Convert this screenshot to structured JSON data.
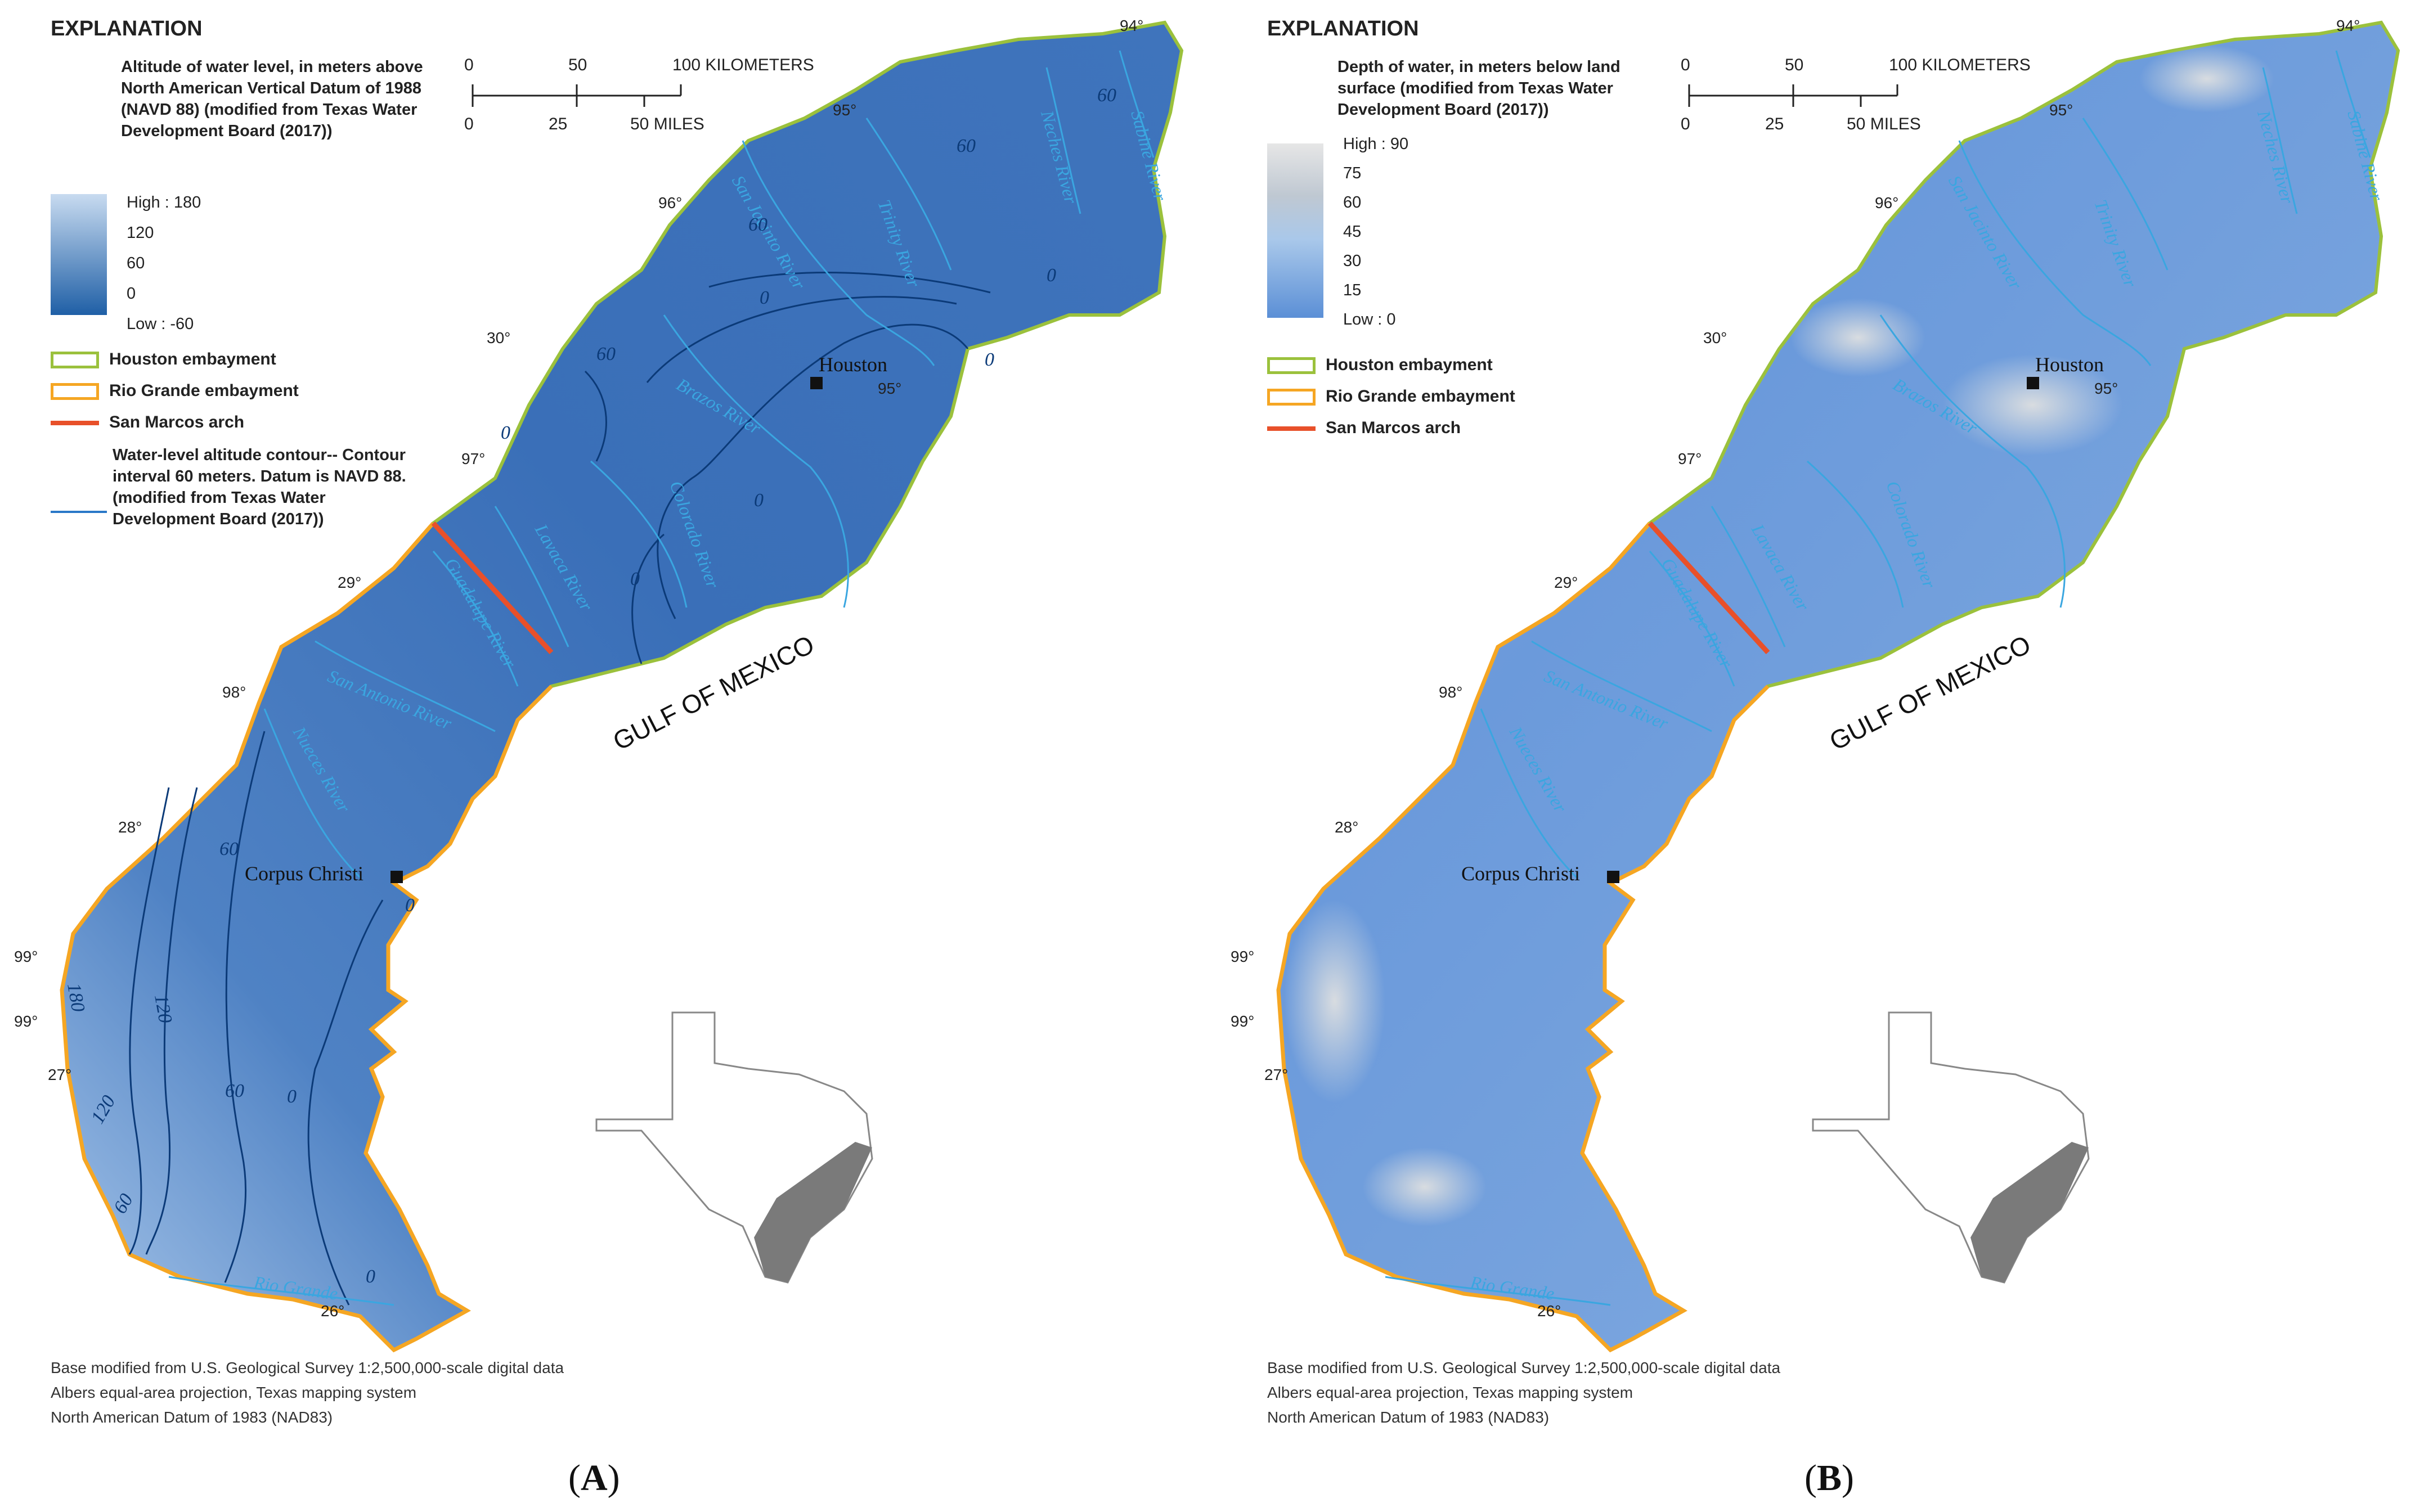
{
  "panels": [
    {
      "id": "A",
      "label": "A",
      "explanation_title": "EXPLANATION",
      "legend_title": "Altitude of water level, in meters above North American Vertical Datum of 1988 (NAVD 88) (modified from Texas Water Development Board (2017))",
      "legend_ticks": [
        "High : 180",
        "120",
        "60",
        "0",
        "Low : -60"
      ],
      "legend_colors": {
        "high": "#c8dbf0",
        "low": "#1f5fa6"
      },
      "boundaries": [
        "Houston embayment",
        "Rio Grande embayment",
        "San Marcos arch"
      ],
      "contour_legend": "Water-level altitude contour-- Contour interval 60 meters. Datum is NAVD 88. (modified from Texas Water Development Board (2017))",
      "contour_labels": [
        "60",
        "60",
        "60",
        "60",
        "0",
        "0",
        "0",
        "0",
        "0",
        "0",
        "0",
        "60",
        "60",
        "120",
        "180",
        "120",
        "60",
        "0",
        "0"
      ],
      "source": [
        "Base modified from U.S. Geological Survey 1:2,500,000-scale digital data",
        "Albers equal-area projection, Texas mapping system",
        "North American Datum of 1983 (NAD83)"
      ]
    },
    {
      "id": "B",
      "label": "B",
      "explanation_title": "EXPLANATION",
      "legend_title": "Depth of water, in meters below land surface (modified from Texas Water Development Board (2017))",
      "legend_ticks": [
        "High : 90",
        "75",
        "60",
        "45",
        "30",
        "15",
        "Low : 0"
      ],
      "legend_colors": {
        "high": "#e6e6e6",
        "low": "#5b8fd6"
      },
      "boundaries": [
        "Houston embayment",
        "Rio Grande embayment",
        "San Marcos arch"
      ],
      "source": [
        "Base modified from U.S. Geological Survey 1:2,500,000-scale digital data",
        "Albers equal-area projection, Texas mapping system",
        "North American Datum of 1983 (NAD83)"
      ]
    }
  ],
  "scale_bar": {
    "km_ticks": [
      "0",
      "50",
      "100 KILOMETERS"
    ],
    "mile_ticks": [
      "0",
      "25",
      "50 MILES"
    ]
  },
  "coordinates": [
    "94°",
    "95°",
    "96°",
    "30°",
    "95°",
    "97°",
    "29°",
    "98°",
    "28°",
    "99°",
    "99°",
    "27°",
    "26°"
  ],
  "rivers": [
    "San Jacinto River",
    "Brazos River",
    "Trinity River",
    "Neches River",
    "Sabine River",
    "Brazos River",
    "Colorado River",
    "Lavaca River",
    "Guadalupe River",
    "San Antonio River",
    "Nueces River",
    "Rio Grande"
  ],
  "cities": [
    "Houston",
    "Corpus Christi"
  ],
  "water_body": "GULF OF MEXICO",
  "colors": {
    "houston_embayment": "#9bc13c",
    "rio_grande_embayment": "#f5a623",
    "san_marcos_arch": "#e8502a",
    "contour": "#0b3a78",
    "river": "#3aa6e0",
    "inset_texas": "#ffffff",
    "inset_coastal": "#7a7a7a"
  }
}
